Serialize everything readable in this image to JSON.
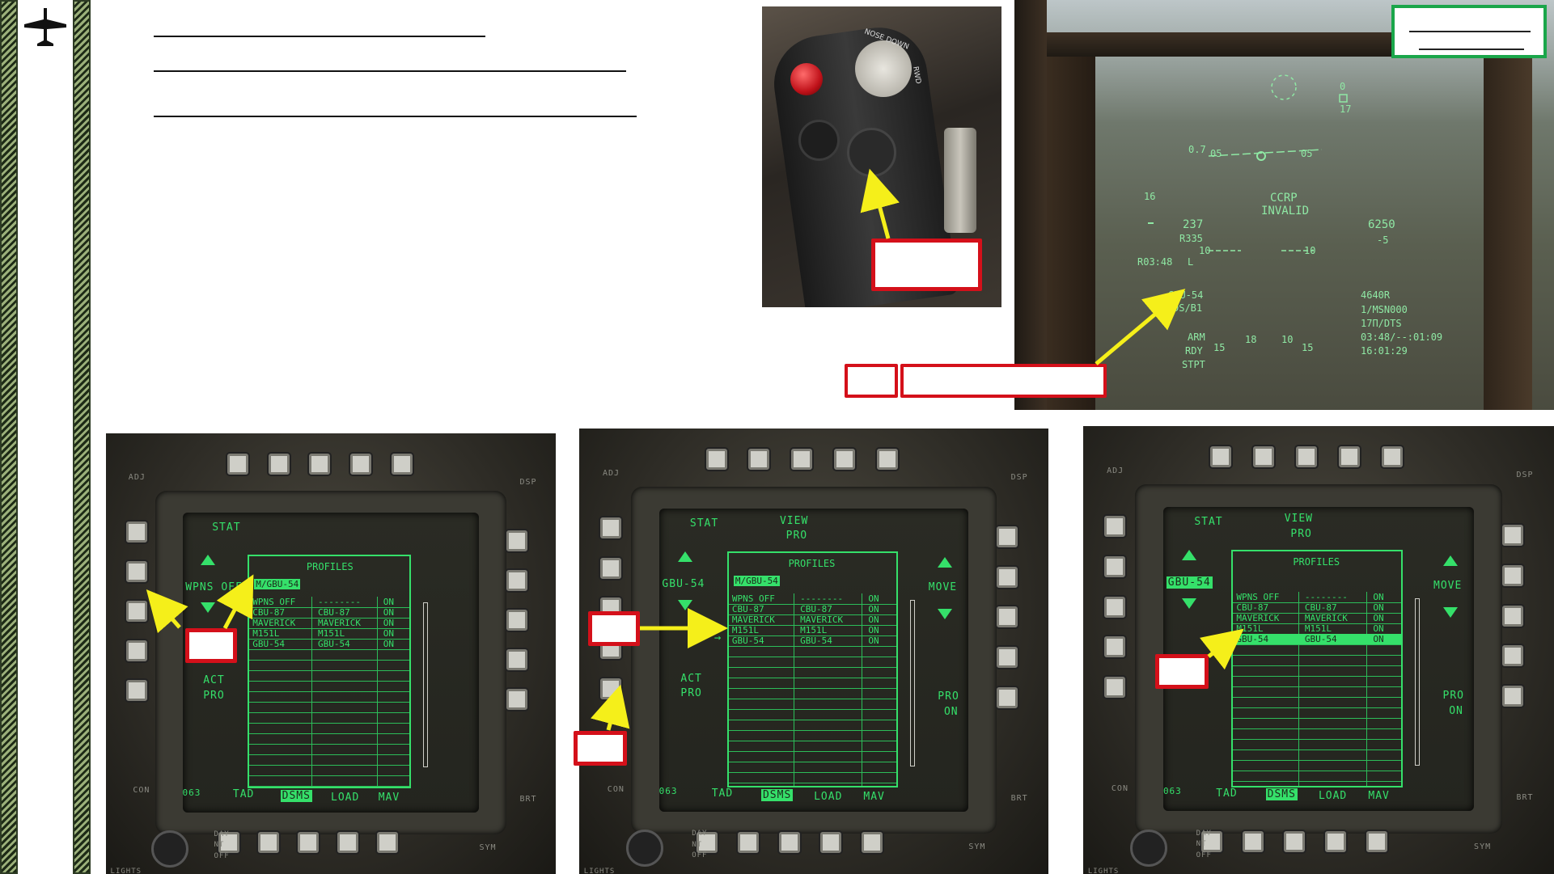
{
  "hud": {
    "range_scale": "0.7",
    "left_05": "05",
    "right_05": "05",
    "sixteen": "16",
    "ccrp": "CCRP",
    "invalid": "INVALID",
    "airspeed": "237",
    "r335": "R335",
    "altitude": "6250",
    "minus5": "-5",
    "ten_left": "10",
    "ten_right": "10",
    "time_left": "R03:48",
    "l_marker": "L",
    "weapon": "GBU-54",
    "ds_b1": "DS/B1",
    "arm": "ARM",
    "rdy": "RDY",
    "stpt": "STPT",
    "r4640": "4640R",
    "msn": "1/MSN000",
    "dts": "17Π/DTS",
    "time_a": "03:48/--:01:09",
    "time_b": "16:01:29",
    "scale_low": "15",
    "scale_18": "18",
    "scale_10": "10",
    "scale_15": "15",
    "top_0": "0",
    "top_17": "17"
  },
  "stick": {
    "label_nose_down": "NOSE DOWN",
    "label_rwd": "RWD"
  },
  "mfcd_labels": {
    "stat": "STAT",
    "view": "VIEW",
    "pro": "PRO",
    "profiles": "PROFILES",
    "act": "ACT",
    "move": "MOVE",
    "pro_on_1": "PRO",
    "pro_on_2": "ON",
    "tad": "TAD",
    "dsms": "DSMS",
    "load": "LOAD",
    "mav": "MAV",
    "b63": "063",
    "adj": "ADJ",
    "dsp": "DSP",
    "con": "CON",
    "brt": "BRT",
    "sym": "SYM",
    "day": "DAY",
    "nt": "NT",
    "off": "OFF",
    "lights": "LIGHTS"
  },
  "mfcd1": {
    "left_title": "WPNS OFF",
    "highlight": "M/GBU-54",
    "rows": [
      [
        "WPNS OFF",
        "--------",
        "ON"
      ],
      [
        "CBU-87",
        "CBU-87",
        "ON"
      ],
      [
        "MAVERICK",
        "MAVERICK",
        "ON"
      ],
      [
        "M151L",
        "M151L",
        "ON"
      ],
      [
        "GBU-54",
        "GBU-54",
        "ON"
      ]
    ]
  },
  "mfcd2": {
    "left_title": "GBU-54",
    "highlight": "M/GBU-54",
    "rows": [
      [
        "WPNS OFF",
        "--------",
        "ON"
      ],
      [
        "CBU-87",
        "CBU-87",
        "ON"
      ],
      [
        "MAVERICK",
        "MAVERICK",
        "ON"
      ],
      [
        "M151L",
        "M151L",
        "ON"
      ],
      [
        "GBU-54",
        "GBU-54",
        "ON"
      ]
    ]
  },
  "mfcd3": {
    "left_title": "GBU-54",
    "rows": [
      [
        "WPNS OFF",
        "--------",
        "ON"
      ],
      [
        "CBU-87",
        "CBU-87",
        "ON"
      ],
      [
        "MAVERICK",
        "MAVERICK",
        "ON"
      ],
      [
        "M151L",
        "M151L",
        "ON"
      ],
      [
        "GBU-54",
        "GBU-54",
        "ON"
      ]
    ]
  },
  "colors": {
    "mfcd_green": "#35e06a",
    "callout_red": "#d4101a",
    "arrow_yellow": "#f5ef1a",
    "badge_green": "#1aa64a"
  },
  "icons": {
    "logo": "aircraft-silhouette-icon"
  }
}
